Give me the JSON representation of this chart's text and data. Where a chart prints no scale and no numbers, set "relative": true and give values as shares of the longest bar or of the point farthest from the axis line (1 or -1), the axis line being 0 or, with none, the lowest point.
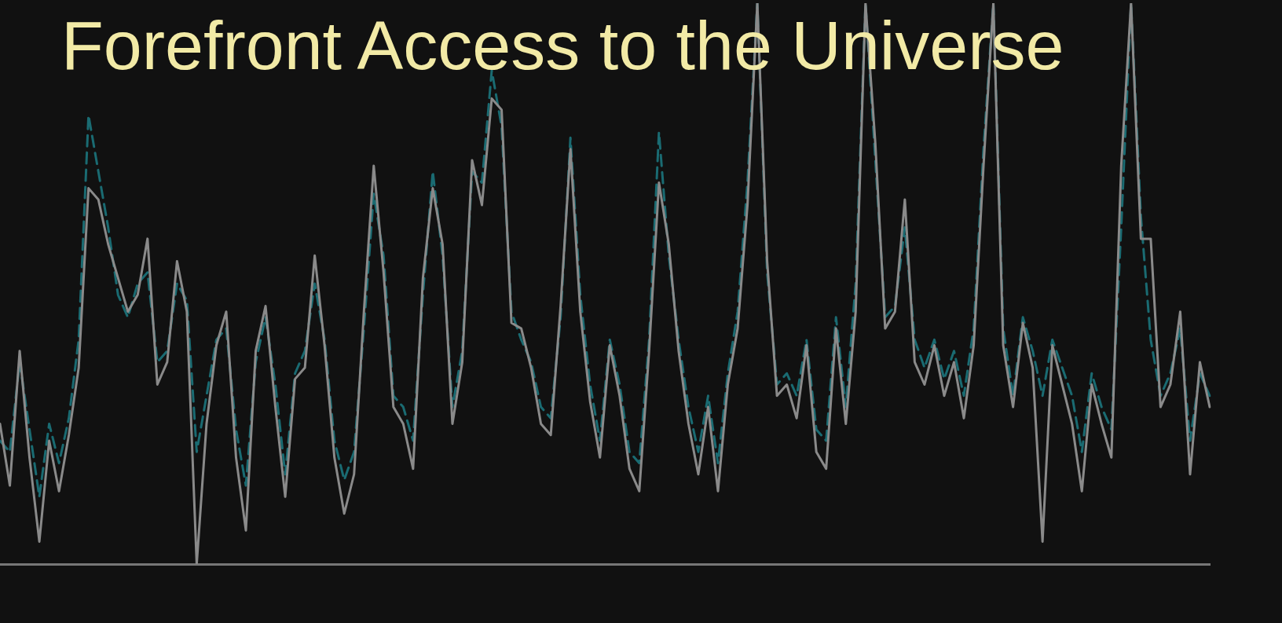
{
  "chart_data": {
    "type": "line",
    "title": "Forefront Access to the Universe",
    "relative": true,
    "legend": false,
    "grid": false,
    "marker": "none",
    "categories": [
      null,
      null,
      null,
      null,
      null,
      null,
      null,
      null,
      null,
      null,
      null,
      null,
      null,
      null,
      null,
      null,
      null,
      null,
      null,
      null,
      null,
      null,
      null,
      null,
      null,
      null,
      null,
      null,
      null,
      null,
      null,
      null,
      null,
      null,
      null,
      null,
      null,
      null,
      null,
      null,
      null,
      null,
      null,
      null,
      null,
      null,
      null,
      null,
      null,
      null,
      null,
      null,
      null,
      null,
      null,
      null,
      null,
      null,
      null,
      null,
      null,
      null,
      null,
      null,
      null,
      null,
      null,
      null,
      null,
      null,
      null,
      null,
      null,
      null,
      null,
      null,
      null,
      null,
      null,
      null,
      null,
      null,
      null,
      null,
      null,
      null,
      null,
      null,
      null,
      null,
      null,
      null,
      null,
      null,
      null,
      null,
      null,
      null,
      null,
      null,
      null,
      null,
      null,
      null,
      null,
      null,
      null,
      null,
      null,
      null,
      null,
      null,
      null,
      null,
      null,
      null,
      null,
      null,
      null,
      null,
      null,
      null,
      null,
      null
    ],
    "series": [
      {
        "color": "#8a8a8a",
        "line_style": "solid",
        "values": [
          0.25,
          0.14,
          0.38,
          0.19,
          0.04,
          0.22,
          0.13,
          0.23,
          0.35,
          0.67,
          0.65,
          0.57,
          0.51,
          0.45,
          0.48,
          0.58,
          0.32,
          0.36,
          0.54,
          0.45,
          0,
          0.25,
          0.39,
          0.45,
          0.19,
          0.06,
          0.38,
          0.46,
          0.28,
          0.12,
          0.33,
          0.35,
          0.55,
          0.39,
          0.19,
          0.09,
          0.16,
          0.45,
          0.71,
          0.52,
          0.28,
          0.25,
          0.17,
          0.51,
          0.67,
          0.57,
          0.25,
          0.36,
          0.72,
          0.64,
          0.83,
          0.81,
          0.43,
          0.42,
          0.35,
          0.25,
          0.23,
          0.46,
          0.74,
          0.45,
          0.29,
          0.19,
          0.39,
          0.3,
          0.17,
          0.13,
          0.38,
          0.68,
          0.57,
          0.38,
          0.25,
          0.16,
          0.28,
          0.13,
          0.32,
          0.42,
          0.64,
          1,
          0.54,
          0.3,
          0.32,
          0.26,
          0.39,
          0.2,
          0.17,
          0.42,
          0.25,
          0.45,
          1,
          0.75,
          0.42,
          0.45,
          0.65,
          0.36,
          0.32,
          0.39,
          0.3,
          0.36,
          0.26,
          0.39,
          0.71,
          1,
          0.39,
          0.28,
          0.43,
          0.35,
          0.04,
          0.39,
          0.32,
          0.25,
          0.13,
          0.32,
          0.25,
          0.19,
          0.71,
          1,
          0.58,
          0.58,
          0.28,
          0.32,
          0.45,
          0.16,
          0.36,
          0.28
        ]
      },
      {
        "color": "#1a6b72",
        "line_style": "dashed",
        "values": [
          0.22,
          0.2,
          0.36,
          0.24,
          0.12,
          0.25,
          0.18,
          0.26,
          0.4,
          0.8,
          0.7,
          0.6,
          0.48,
          0.44,
          0.5,
          0.52,
          0.36,
          0.38,
          0.5,
          0.47,
          0.2,
          0.3,
          0.4,
          0.42,
          0.24,
          0.14,
          0.36,
          0.44,
          0.32,
          0.16,
          0.34,
          0.38,
          0.5,
          0.4,
          0.22,
          0.15,
          0.2,
          0.42,
          0.66,
          0.55,
          0.3,
          0.28,
          0.22,
          0.48,
          0.7,
          0.55,
          0.28,
          0.38,
          0.7,
          0.68,
          0.88,
          0.78,
          0.45,
          0.4,
          0.36,
          0.28,
          0.26,
          0.44,
          0.76,
          0.48,
          0.32,
          0.22,
          0.4,
          0.32,
          0.2,
          0.18,
          0.4,
          0.77,
          0.55,
          0.4,
          0.28,
          0.2,
          0.3,
          0.18,
          0.34,
          0.45,
          0.68,
          1,
          0.52,
          0.32,
          0.34,
          0.3,
          0.4,
          0.24,
          0.22,
          0.44,
          0.28,
          0.5,
          1,
          0.72,
          0.44,
          0.46,
          0.6,
          0.4,
          0.35,
          0.4,
          0.33,
          0.38,
          0.3,
          0.42,
          0.74,
          1,
          0.42,
          0.3,
          0.44,
          0.38,
          0.3,
          0.4,
          0.35,
          0.3,
          0.2,
          0.34,
          0.28,
          0.24,
          0.6,
          1,
          0.62,
          0.4,
          0.3,
          0.34,
          0.42,
          0.22,
          0.34,
          0.3
        ]
      }
    ]
  }
}
